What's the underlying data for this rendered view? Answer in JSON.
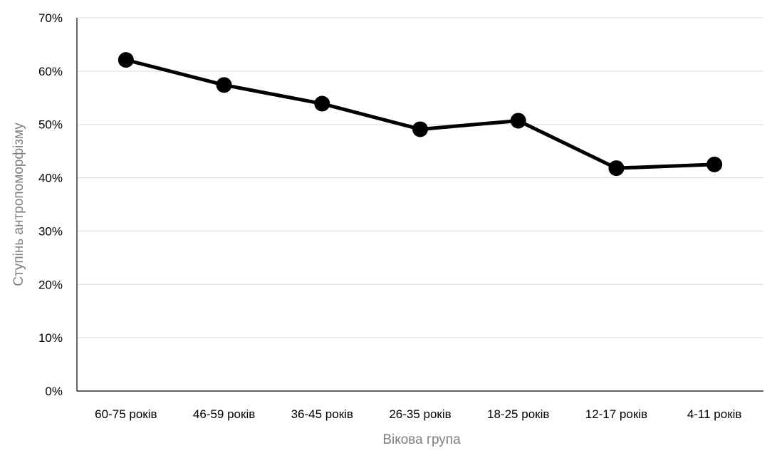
{
  "chart_data": {
    "type": "line",
    "title": "",
    "xlabel": "Вікова група",
    "ylabel": "Ступінь антропоморфізму",
    "categories": [
      "60-75 років",
      "46-59 років",
      "36-45 років",
      "26-35 років",
      "18-25 років",
      "12-17 років",
      "4-11 років"
    ],
    "series": [
      {
        "values": [
          0.621,
          0.574,
          0.539,
          0.491,
          0.507,
          0.418,
          0.425
        ]
      }
    ],
    "ylim": [
      0,
      0.7
    ],
    "yticks": [
      0,
      0.1,
      0.2,
      0.3,
      0.4,
      0.5,
      0.6,
      0.7
    ],
    "yticklabels": [
      "0%",
      "10%",
      "20%",
      "30%",
      "40%",
      "50%",
      "60%",
      "70%"
    ],
    "grid": "horizontal",
    "legend": "none",
    "colors": {
      "series": "#000000",
      "grid": "#d9d9d9",
      "axis_title": "#7f7f7f"
    }
  }
}
